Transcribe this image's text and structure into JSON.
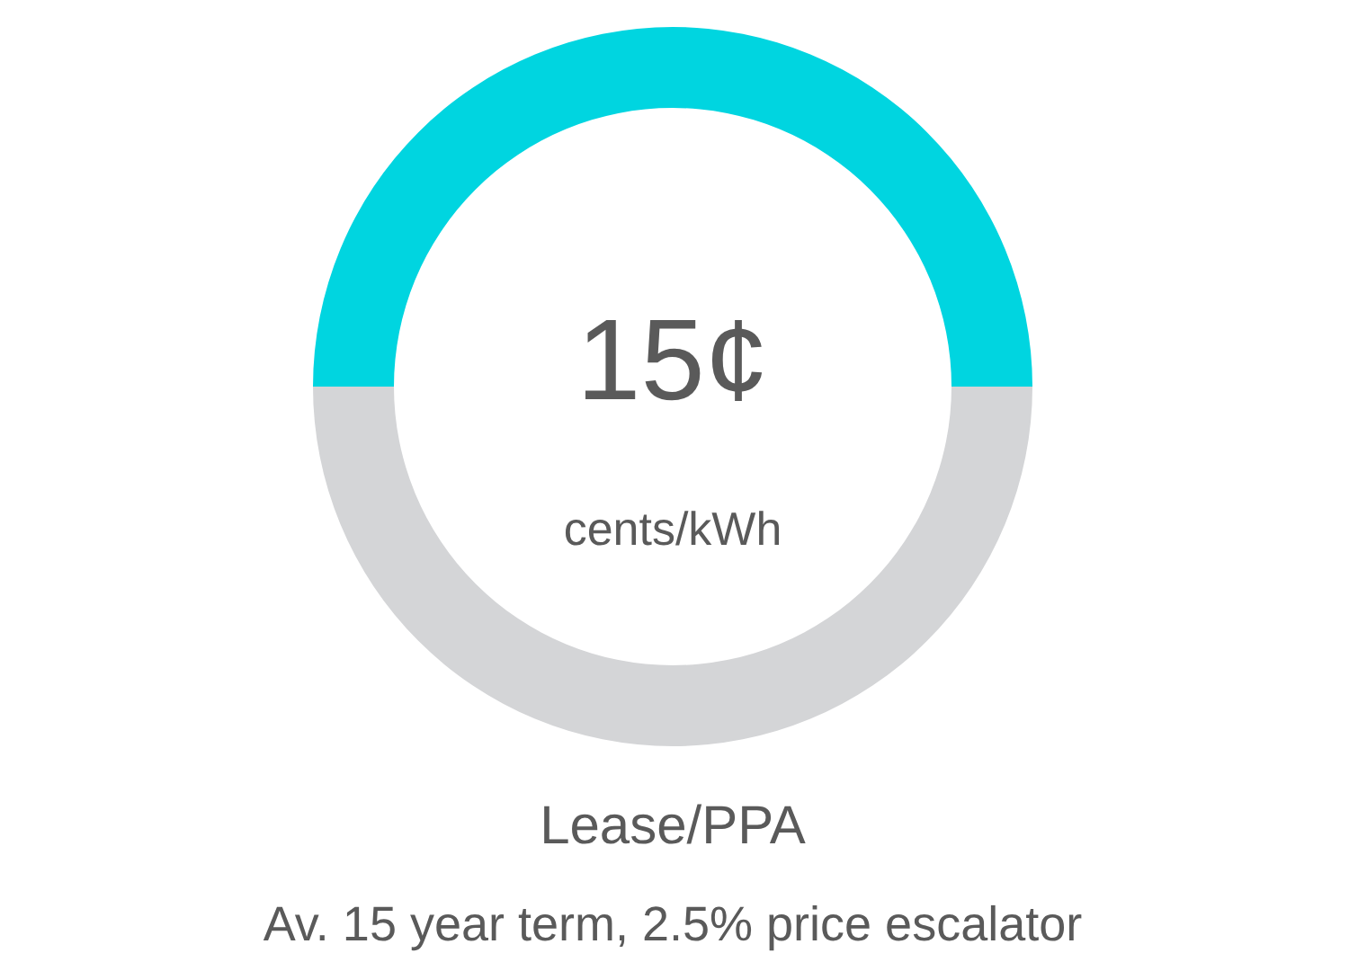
{
  "chart_data": {
    "type": "donut",
    "title": "Lease/PPA",
    "subtitle": "Av. 15 year term, 2.5% price escalator",
    "categories": [
      null,
      null
    ],
    "values": [
      50,
      50
    ],
    "colors": [
      "#00d5e0",
      "#d4d5d7"
    ],
    "annotations": [
      "15¢",
      "cents/kWh"
    ]
  }
}
